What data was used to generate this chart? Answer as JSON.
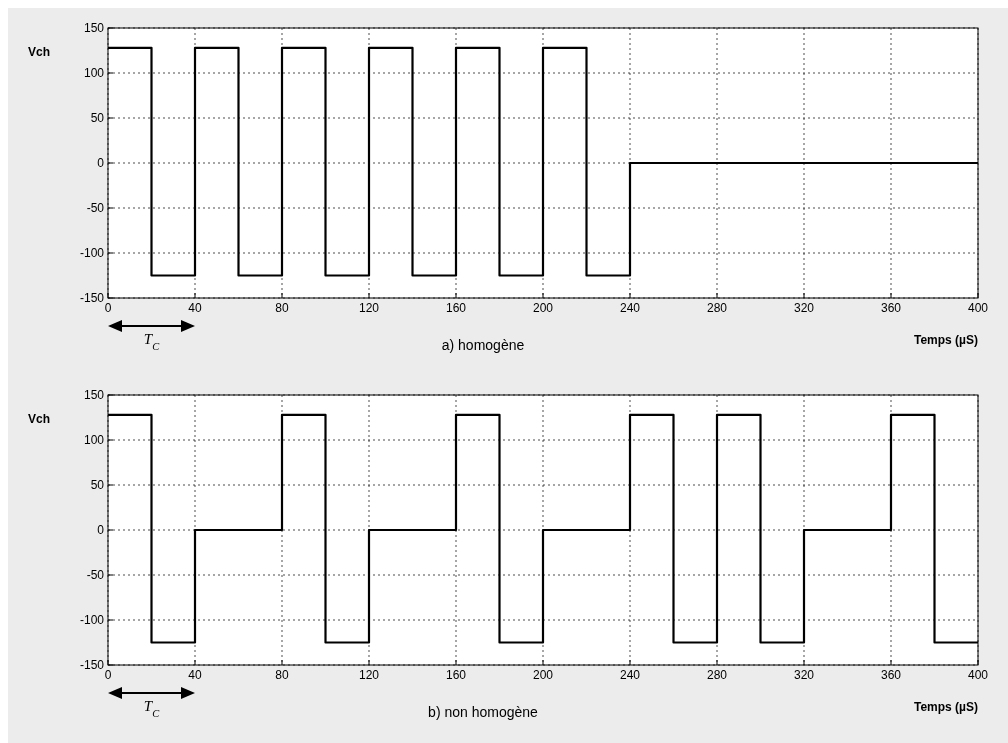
{
  "chart_data": [
    {
      "type": "step",
      "title": "a) homogène",
      "xlabel": "Temps (µS)",
      "ylabel": "Vch",
      "annotations": [
        "T$_{C}$"
      ],
      "xlim": [
        0,
        400
      ],
      "xticks": [
        0,
        40,
        80,
        120,
        160,
        200,
        240,
        280,
        320,
        360,
        400
      ],
      "ylim": [
        -150,
        150
      ],
      "yticks": [
        -150,
        -100,
        -50,
        0,
        50,
        100,
        150
      ],
      "grid": true,
      "line_style": "solid",
      "series": [
        {
          "color": "#000000",
          "x": [
            0,
            20,
            40,
            60,
            80,
            100,
            120,
            140,
            160,
            180,
            200,
            220,
            240,
            400
          ],
          "values": [
            128,
            -125,
            128,
            -125,
            128,
            -125,
            128,
            -125,
            128,
            -125,
            128,
            -125,
            0,
            0
          ]
        }
      ]
    },
    {
      "type": "step",
      "title": "b) non homogène",
      "xlabel": "Temps (µS)",
      "ylabel": "Vch",
      "annotations": [
        "T$_{C}$"
      ],
      "xlim": [
        0,
        400
      ],
      "xticks": [
        0,
        40,
        80,
        120,
        160,
        200,
        240,
        280,
        320,
        360,
        400
      ],
      "ylim": [
        -150,
        150
      ],
      "yticks": [
        -150,
        -100,
        -50,
        0,
        50,
        100,
        150
      ],
      "grid": true,
      "line_style": "solid",
      "series": [
        {
          "color": "#000000",
          "x": [
            0,
            20,
            40,
            80,
            100,
            120,
            160,
            180,
            200,
            240,
            260,
            280,
            300,
            320,
            360,
            380,
            400
          ],
          "values": [
            128,
            -125,
            0,
            128,
            -125,
            0,
            128,
            -125,
            0,
            128,
            -125,
            128,
            -125,
            0,
            128,
            -125,
            -125
          ]
        }
      ]
    }
  ]
}
